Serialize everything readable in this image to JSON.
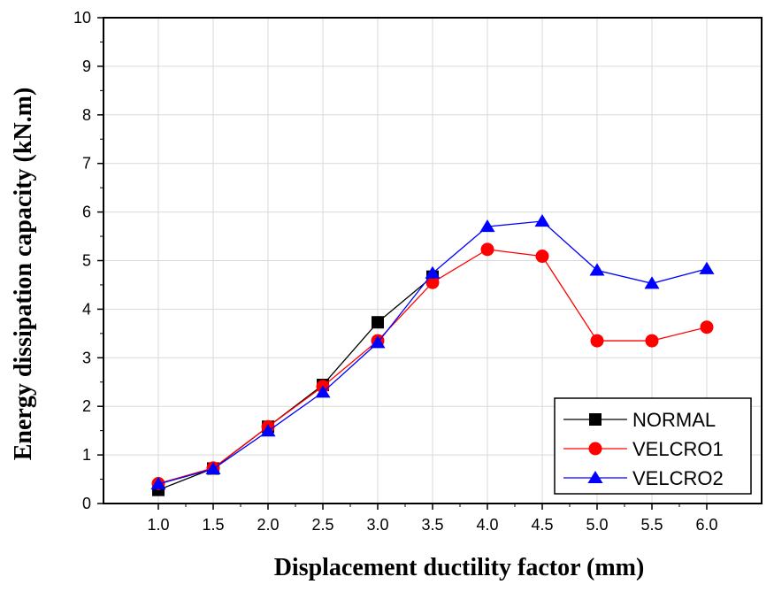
{
  "chart_data": {
    "type": "line",
    "xlabel": "Displacement ductility factor (mm)",
    "ylabel": "Energy dissipation capacity (kN.m)",
    "x_ticks": [
      "1.0",
      "1.5",
      "2.0",
      "2.5",
      "3.0",
      "3.5",
      "4.0",
      "4.5",
      "5.0",
      "5.5",
      "6.0"
    ],
    "y_ticks": [
      "0",
      "1",
      "2",
      "3",
      "4",
      "5",
      "6",
      "7",
      "8",
      "9",
      "10"
    ],
    "xlim": [
      0.5,
      6.5
    ],
    "ylim": [
      0,
      10
    ],
    "grid": true,
    "legend_position": "bottom-right",
    "series": [
      {
        "name": "NORMAL",
        "color": "#000000",
        "marker": "square",
        "x": [
          1.0,
          1.5,
          2.0,
          2.5,
          3.0,
          3.5
        ],
        "y": [
          0.28,
          0.72,
          1.58,
          2.44,
          3.73,
          4.67
        ]
      },
      {
        "name": "VELCRO1",
        "color": "#ff0000",
        "marker": "circle",
        "x": [
          1.0,
          1.5,
          2.0,
          2.5,
          3.0,
          3.5,
          4.0,
          4.5,
          5.0,
          5.5,
          6.0
        ],
        "y": [
          0.41,
          0.73,
          1.58,
          2.41,
          3.35,
          4.55,
          5.23,
          5.09,
          3.35,
          3.35,
          3.63
        ]
      },
      {
        "name": "VELCRO2",
        "color": "#0000ff",
        "marker": "triangle",
        "x": [
          1.0,
          1.5,
          2.0,
          2.5,
          3.0,
          3.5,
          4.0,
          4.5,
          5.0,
          5.5,
          6.0
        ],
        "y": [
          0.4,
          0.71,
          1.49,
          2.29,
          3.31,
          4.74,
          5.7,
          5.81,
          4.8,
          4.53,
          4.83
        ]
      }
    ]
  }
}
